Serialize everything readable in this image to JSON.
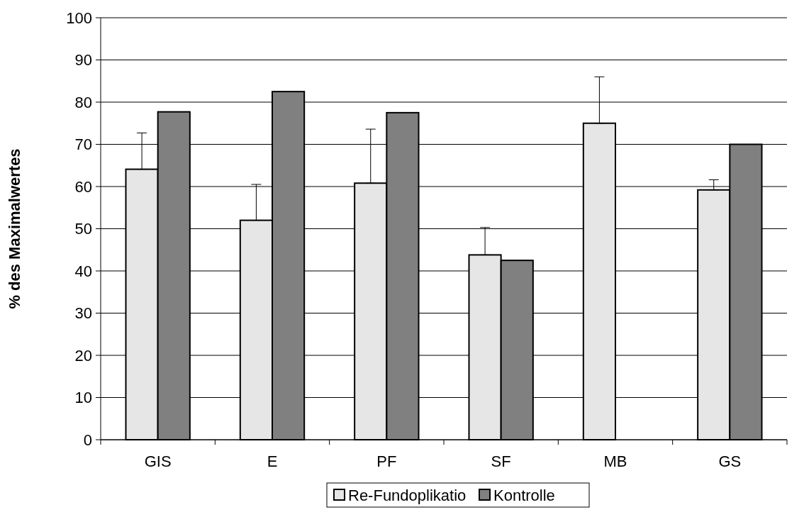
{
  "chart_data": {
    "type": "bar",
    "ylabel": "% des Maximalwertes",
    "categories": [
      "GIS",
      "E",
      "PF",
      "SF",
      "MB",
      "GS"
    ],
    "series": [
      {
        "name": "Re-Fundoplikatio",
        "color": "#e6e6e6",
        "values": [
          64.1,
          52,
          60.8,
          43.8,
          75,
          59.2
        ],
        "errors": [
          [
            64.1,
            72.7
          ],
          [
            52,
            60.5
          ],
          [
            60.8,
            73.6
          ],
          [
            43.8,
            50.3
          ],
          [
            75,
            86
          ],
          [
            59.2,
            61.6
          ]
        ]
      },
      {
        "name": "Kontrolle",
        "color": "#808080",
        "values": [
          77.7,
          82.5,
          77.5,
          42.5,
          null,
          70
        ]
      }
    ],
    "ylim": [
      0,
      100
    ],
    "yticks": [
      0,
      10,
      20,
      30,
      40,
      50,
      60,
      70,
      80,
      90,
      100
    ],
    "grid": "y",
    "legend": "bottom"
  }
}
